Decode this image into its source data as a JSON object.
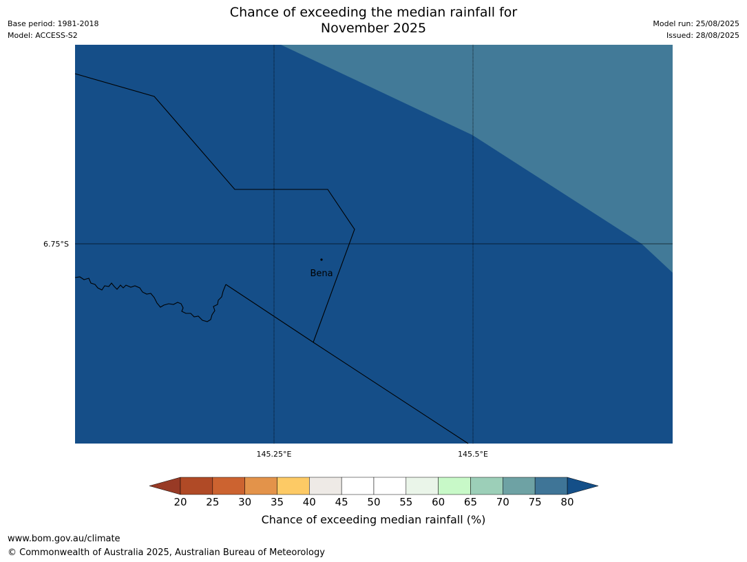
{
  "header": {
    "title_line1": "Chance of exceeding the median rainfall for",
    "title_line2": "November 2025",
    "base_period": "Base period: 1981-2018",
    "model": "Model: ACCESS-S2",
    "model_run": "Model run: 25/08/2025",
    "issued": "Issued: 28/08/2025"
  },
  "map": {
    "lat_label": "6.75°S",
    "lon_labels": [
      "145.25°E",
      "145.5°E"
    ],
    "place_name": "Bena",
    "colors": {
      "main_fill": "#154e88",
      "upper_right_fill": "#427a98"
    },
    "category_main": "80+",
    "category_upper_right": "75-80"
  },
  "colorbar": {
    "ticks": [
      "20",
      "25",
      "30",
      "35",
      "40",
      "45",
      "50",
      "55",
      "60",
      "65",
      "70",
      "75",
      "80"
    ],
    "colors": [
      "#b04a26",
      "#cc6330",
      "#e3934a",
      "#fdca65",
      "#eeeae6",
      "#ffffff",
      "#ffffff",
      "#eaf5e9",
      "#c8f9c8",
      "#9ccfb8",
      "#6ea2a4",
      "#3f7597"
    ],
    "under_color": "#983a25",
    "over_color": "#144f88",
    "label": "Chance of exceeding median rainfall (%)"
  },
  "footer": {
    "url": "www.bom.gov.au/climate",
    "copyright": "© Commonwealth of Australia 2025, Australian Bureau of Meteorology"
  }
}
